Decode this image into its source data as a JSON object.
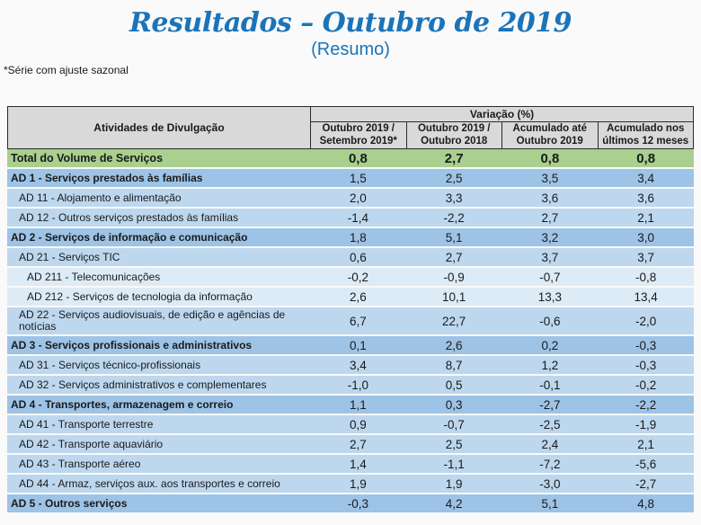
{
  "title": "Resultados – Outubro de 2019",
  "subtitle": "(Resumo)",
  "footnote": "*Série com ajuste sazonal",
  "colors": {
    "title_blue": "#1b74b9",
    "header_gray": "#d9d9d9",
    "total_green": "#a9d08e",
    "section_blue": "#9dc3e6",
    "sub_blue": "#bdd7ee",
    "subsub_blue": "#ddebf7"
  },
  "table": {
    "header": {
      "col1": "Atividades de Divulgação",
      "group": "Variação (%)",
      "columns": [
        "Outubro 2019 /\nSetembro 2019*",
        "Outubro 2019 /\nOutubro 2018",
        "Acumulado até\nOutubro 2019",
        "Acumulado nos\núltimos 12 meses"
      ]
    },
    "total": {
      "label": "Total do Volume de Serviços",
      "values": [
        "0,8",
        "2,7",
        "0,8",
        "0,8"
      ]
    },
    "rows": [
      {
        "label": "AD 1 - Serviços prestados às famílias",
        "depth": 0,
        "values": [
          "1,5",
          "2,5",
          "3,5",
          "3,4"
        ]
      },
      {
        "label": "AD 11 - Alojamento e alimentação",
        "depth": 1,
        "values": [
          "2,0",
          "3,3",
          "3,6",
          "3,6"
        ]
      },
      {
        "label": "AD 12 - Outros serviços prestados às famílias",
        "depth": 1,
        "values": [
          "-1,4",
          "-2,2",
          "2,7",
          "2,1"
        ]
      },
      {
        "label": "AD 2 - Serviços de informação e comunicação",
        "depth": 0,
        "values": [
          "1,8",
          "5,1",
          "3,2",
          "3,0"
        ]
      },
      {
        "label": "AD 21 - Serviços TIC",
        "depth": 1,
        "values": [
          "0,6",
          "2,7",
          "3,7",
          "3,7"
        ]
      },
      {
        "label": "AD 211 - Telecomunicações",
        "depth": 2,
        "values": [
          "-0,2",
          "-0,9",
          "-0,7",
          "-0,8"
        ]
      },
      {
        "label": "AD 212 - Serviços de tecnologia da informação",
        "depth": 2,
        "values": [
          "2,6",
          "10,1",
          "13,3",
          "13,4"
        ]
      },
      {
        "label": "AD 22 - Serviços audiovisuais, de edição e agências de notícias",
        "depth": 1,
        "wrap": true,
        "values": [
          "6,7",
          "22,7",
          "-0,6",
          "-2,0"
        ]
      },
      {
        "label": "AD 3 - Serviços profissionais e administrativos",
        "depth": 0,
        "values": [
          "0,1",
          "2,6",
          "0,2",
          "-0,3"
        ]
      },
      {
        "label": "AD 31 - Serviços técnico-profissionais",
        "depth": 1,
        "values": [
          "3,4",
          "8,7",
          "1,2",
          "-0,3"
        ]
      },
      {
        "label": "AD 32 - Serviços administrativos e complementares",
        "depth": 1,
        "values": [
          "-1,0",
          "0,5",
          "-0,1",
          "-0,2"
        ]
      },
      {
        "label": "AD 4 - Transportes, armazenagem e correio",
        "depth": 0,
        "values": [
          "1,1",
          "0,3",
          "-2,7",
          "-2,2"
        ]
      },
      {
        "label": "AD 41 - Transporte terrestre",
        "depth": 1,
        "values": [
          "0,9",
          "-0,7",
          "-2,5",
          "-1,9"
        ]
      },
      {
        "label": "AD 42 - Transporte aquaviário",
        "depth": 1,
        "values": [
          "2,7",
          "2,5",
          "2,4",
          "2,1"
        ]
      },
      {
        "label": "AD 43 - Transporte aéreo",
        "depth": 1,
        "values": [
          "1,4",
          "-1,1",
          "-7,2",
          "-5,6"
        ]
      },
      {
        "label": "AD 44 - Armaz, serviços aux. aos transportes e correio",
        "depth": 1,
        "values": [
          "1,9",
          "1,9",
          "-3,0",
          "-2,7"
        ]
      },
      {
        "label": "AD 5 - Outros serviços",
        "depth": 0,
        "values": [
          "-0,3",
          "4,2",
          "5,1",
          "4,8"
        ]
      }
    ]
  }
}
